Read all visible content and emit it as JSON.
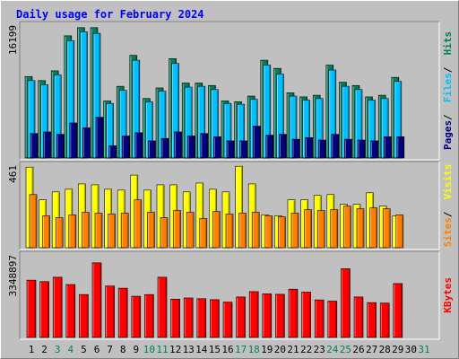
{
  "title": "Daily usage for February 2024",
  "colors": {
    "background": "#c0c0c0",
    "panel": "#c0c0c0",
    "title": "#0000ff",
    "hits": "#00805c",
    "files": "#00c0ff",
    "pages": "#000080",
    "visits": "#ffff00",
    "sites": "#ff8000",
    "kbytes": "#ff0000",
    "weekend_label": "#00805c",
    "weekday_label": "#000000"
  },
  "chart_data": [
    {
      "type": "bar",
      "panel": "hits-files-pages",
      "categories": [
        "1",
        "2",
        "3",
        "4",
        "5",
        "6",
        "7",
        "8",
        "9",
        "10",
        "11",
        "12",
        "13",
        "14",
        "15",
        "16",
        "17",
        "18",
        "19",
        "20",
        "21",
        "22",
        "23",
        "24",
        "25",
        "26",
        "27",
        "28",
        "29",
        "30",
        "31"
      ],
      "weekend_days": [
        "3",
        "4",
        "10",
        "11",
        "17",
        "18",
        "24",
        "25",
        "31"
      ],
      "y_max_label": "16199",
      "ylim": [
        0,
        16199
      ],
      "axis_labels": [
        "Pages",
        "Files",
        "Hits"
      ],
      "series": [
        {
          "name": "Hits",
          "values": [
            10000,
            9500,
            10700,
            15000,
            16000,
            16000,
            7000,
            8800,
            12600,
            7300,
            8600,
            12200,
            9200,
            9200,
            8900,
            7000,
            6900,
            7600,
            12000,
            11000,
            8000,
            7500,
            7700,
            11400,
            9300,
            8900,
            7500,
            7700,
            9900,
            0,
            0
          ]
        },
        {
          "name": "Files",
          "values": [
            9500,
            9000,
            10200,
            14400,
            15500,
            15300,
            6700,
            8300,
            12000,
            6900,
            8200,
            11600,
            8700,
            8800,
            8400,
            6700,
            6600,
            7200,
            11400,
            10300,
            7600,
            7100,
            7300,
            10800,
            8800,
            8400,
            7100,
            7300,
            9400,
            0,
            0
          ]
        },
        {
          "name": "Pages",
          "values": [
            3000,
            3200,
            2900,
            4300,
            3700,
            5000,
            1500,
            2700,
            3100,
            2100,
            2400,
            3200,
            2700,
            3000,
            2600,
            2100,
            2100,
            3900,
            2800,
            2900,
            2300,
            2500,
            2200,
            2900,
            2300,
            2200,
            2100,
            2600,
            2600,
            0,
            0
          ]
        }
      ]
    },
    {
      "type": "bar",
      "panel": "visits-sites",
      "y_max_label": "461",
      "ylim": [
        0,
        461
      ],
      "axis_labels": [
        "Sites",
        "Visits"
      ],
      "series": [
        {
          "name": "Visits",
          "values": [
            455,
            270,
            315,
            330,
            360,
            355,
            330,
            325,
            410,
            325,
            355,
            355,
            315,
            365,
            330,
            315,
            460,
            360,
            185,
            180,
            270,
            270,
            295,
            300,
            245,
            245,
            310,
            235,
            180,
            0,
            0
          ]
        },
        {
          "name": "Sites",
          "values": [
            300,
            180,
            170,
            185,
            200,
            195,
            190,
            195,
            270,
            200,
            170,
            210,
            200,
            165,
            205,
            190,
            195,
            200,
            180,
            175,
            195,
            215,
            210,
            215,
            235,
            220,
            225,
            220,
            185,
            0,
            0
          ]
        }
      ]
    },
    {
      "type": "bar",
      "panel": "kbytes",
      "y_max_label": "3348897",
      "ylim": [
        0,
        3348897
      ],
      "axis_labels": [
        "KBytes"
      ],
      "series": [
        {
          "name": "KBytes",
          "values": [
            2350000,
            2290000,
            2470000,
            2170000,
            1760000,
            3060000,
            2110000,
            2020000,
            1690000,
            1760000,
            2470000,
            1570000,
            1620000,
            1590000,
            1550000,
            1450000,
            1660000,
            1880000,
            1790000,
            1770000,
            1980000,
            1860000,
            1540000,
            1490000,
            2820000,
            1660000,
            1430000,
            1410000,
            2210000,
            0,
            0
          ]
        }
      ]
    }
  ]
}
